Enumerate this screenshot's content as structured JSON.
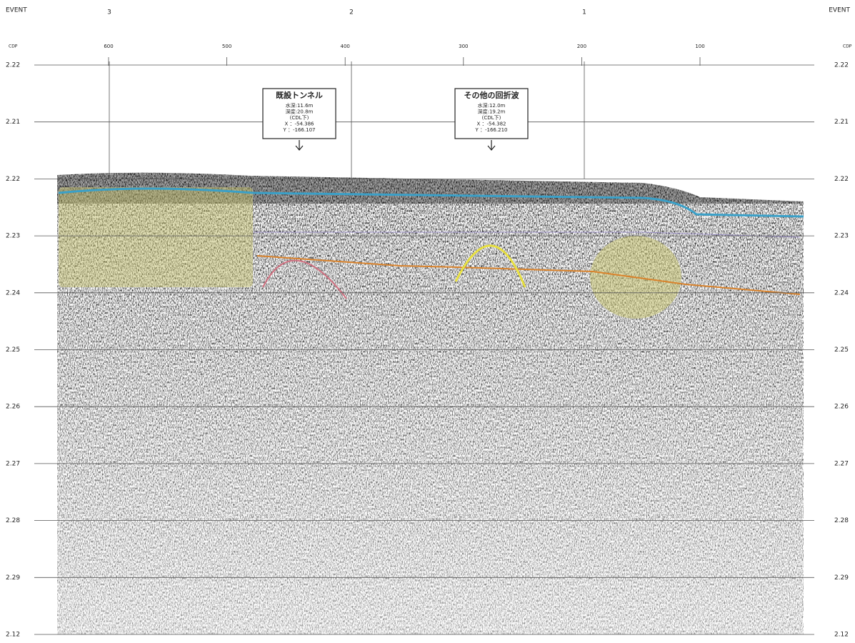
{
  "header": {
    "event_left": "EVENT",
    "event_right": "EVENT",
    "cdp_left": "CDP",
    "cdp_right": "CDP"
  },
  "events": [
    "3",
    "2",
    "1"
  ],
  "cdp_labels": [
    "600",
    "500",
    "400",
    "300",
    "200",
    "100"
  ],
  "time_labels_left": [
    "2.22",
    "2.21",
    "2.22",
    "2.23",
    "2.24",
    "2.25",
    "2.26",
    "2.27",
    "2.28",
    "2.29",
    "2.12"
  ],
  "time_labels_right": [
    "2.22",
    "2.21",
    "2.22",
    "2.23",
    "2.24",
    "2.25",
    "2.26",
    "2.27",
    "2.28",
    "2.29",
    "2.12"
  ],
  "annotations": [
    {
      "title": "既設トンネル",
      "lines": [
        "水深:11.6m",
        "深度:20.8m",
        "(CDL下)",
        "X ：-54.386",
        "Y ：-166.107"
      ]
    },
    {
      "title": "その他の回折波",
      "lines": [
        "水深:12.0m",
        "深度:19.2m",
        "(CDL下)",
        "X ：-54.382",
        "Y ：-166.210"
      ]
    }
  ]
}
